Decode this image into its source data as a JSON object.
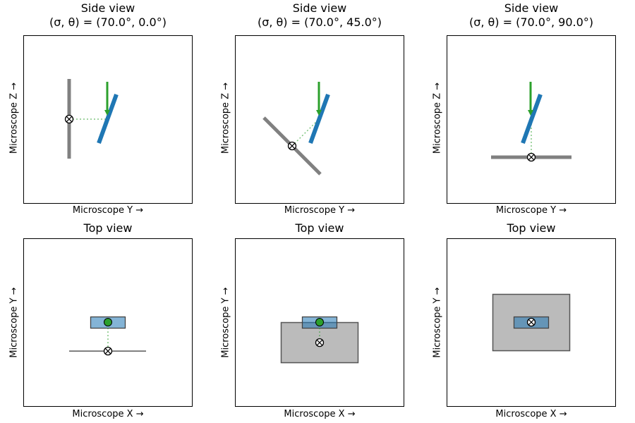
{
  "panels": [
    {
      "title_line1": "Side view",
      "title_line2": "(σ, θ) = (70.0°, 0.0°)",
      "xlabel": "Microscope Y →",
      "ylabel": "Microscope Z →"
    },
    {
      "title_line1": "Side view",
      "title_line2": "(σ, θ) = (70.0°, 45.0°)",
      "xlabel": "Microscope Y →",
      "ylabel": "Microscope Z →"
    },
    {
      "title_line1": "Side view",
      "title_line2": "(σ, θ) = (70.0°, 90.0°)",
      "xlabel": "Microscope Y →",
      "ylabel": "Microscope Z →"
    },
    {
      "title_line1": "Top view",
      "xlabel": "Microscope X →",
      "ylabel": "Microscope Y →"
    },
    {
      "title_line1": "Top view",
      "xlabel": "Microscope X →",
      "ylabel": "Microscope Y →"
    },
    {
      "title_line1": "Top view",
      "xlabel": "Microscope X →",
      "ylabel": "Microscope Y →"
    }
  ],
  "colors": {
    "blue": "#1f77b4",
    "green": "#2ca02c",
    "gray": "#808080",
    "box_gray": "#bbbbbb",
    "box_edge": "#555555"
  }
}
